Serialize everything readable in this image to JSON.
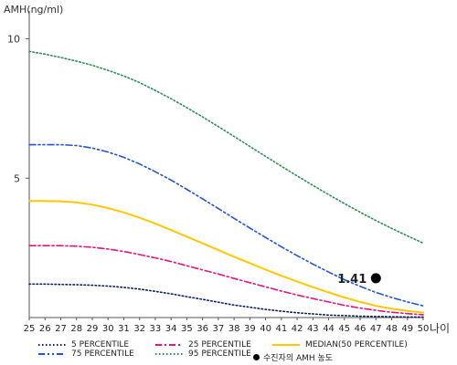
{
  "y_axis_title": "AMH(ng/ml)",
  "x_unit": "나이",
  "chart_data": {
    "type": "line",
    "ylabel": "AMH(ng/ml)",
    "xlabel": "나이",
    "ylim": [
      0,
      11
    ],
    "xlim": [
      25,
      50
    ],
    "y_ticks": [
      5,
      10
    ],
    "x": [
      25,
      26,
      27,
      28,
      29,
      30,
      31,
      32,
      33,
      34,
      35,
      36,
      37,
      38,
      39,
      40,
      41,
      42,
      43,
      44,
      45,
      46,
      47,
      48,
      49,
      50
    ],
    "series": [
      {
        "name": "5 PERCENTILE",
        "color": "#0b1f6b",
        "dash": "dot",
        "values": [
          1.2,
          1.2,
          1.19,
          1.18,
          1.16,
          1.13,
          1.08,
          1.02,
          0.94,
          0.85,
          0.75,
          0.65,
          0.55,
          0.45,
          0.37,
          0.29,
          0.23,
          0.17,
          0.13,
          0.09,
          0.07,
          0.05,
          0.04,
          0.03,
          0.02,
          0.02
        ]
      },
      {
        "name": "25 PERCENTILE",
        "color": "#e0157f",
        "dash": "dashdot",
        "values": [
          2.58,
          2.58,
          2.58,
          2.56,
          2.52,
          2.46,
          2.37,
          2.26,
          2.14,
          2.01,
          1.86,
          1.71,
          1.56,
          1.4,
          1.25,
          1.1,
          0.95,
          0.81,
          0.68,
          0.56,
          0.44,
          0.34,
          0.26,
          0.19,
          0.14,
          0.1
        ]
      },
      {
        "name": "MEDIAN(50 PERCENTILE)",
        "color": "#ffc800",
        "dash": "solid",
        "values": [
          4.18,
          4.18,
          4.17,
          4.13,
          4.05,
          3.93,
          3.77,
          3.58,
          3.37,
          3.14,
          2.9,
          2.66,
          2.42,
          2.18,
          1.95,
          1.72,
          1.5,
          1.29,
          1.09,
          0.9,
          0.72,
          0.56,
          0.42,
          0.32,
          0.24,
          0.18
        ]
      },
      {
        "name": "75 PERCENTILE",
        "color": "#2255cc",
        "dash": "dashdotdot",
        "values": [
          6.2,
          6.2,
          6.2,
          6.17,
          6.08,
          5.94,
          5.75,
          5.51,
          5.23,
          4.93,
          4.6,
          4.26,
          3.91,
          3.56,
          3.21,
          2.87,
          2.54,
          2.22,
          1.92,
          1.63,
          1.36,
          1.12,
          0.9,
          0.72,
          0.56,
          0.42
        ]
      },
      {
        "name": "95 PERCENTILE",
        "color": "#2e8b57",
        "dash": "dot",
        "values": [
          9.55,
          9.45,
          9.33,
          9.2,
          9.05,
          8.87,
          8.67,
          8.43,
          8.15,
          7.85,
          7.53,
          7.2,
          6.85,
          6.5,
          6.14,
          5.78,
          5.43,
          5.08,
          4.74,
          4.41,
          4.09,
          3.78,
          3.48,
          3.2,
          2.93,
          2.67
        ]
      }
    ],
    "patient": {
      "label": "수진자의 AMH 농도",
      "age": 47,
      "value": 1.41,
      "value_label": "1.41"
    }
  },
  "legend": [
    {
      "label": "5 PERCENTILE",
      "color": "#0b1f6b",
      "dash": "dot"
    },
    {
      "label": "25 PERCENTILE",
      "color": "#e0157f",
      "dash": "dashdot"
    },
    {
      "label": "MEDIAN(50 PERCENTILE)",
      "color": "#ffc800",
      "dash": "solid"
    },
    {
      "label": "75 PERCENTILE",
      "color": "#2255cc",
      "dash": "dashdotdot"
    },
    {
      "label": "95 PERCENTILE",
      "color": "#2e8b57",
      "dash": "dot"
    }
  ],
  "patient_legend_label": "수진자의 AMH 농도"
}
